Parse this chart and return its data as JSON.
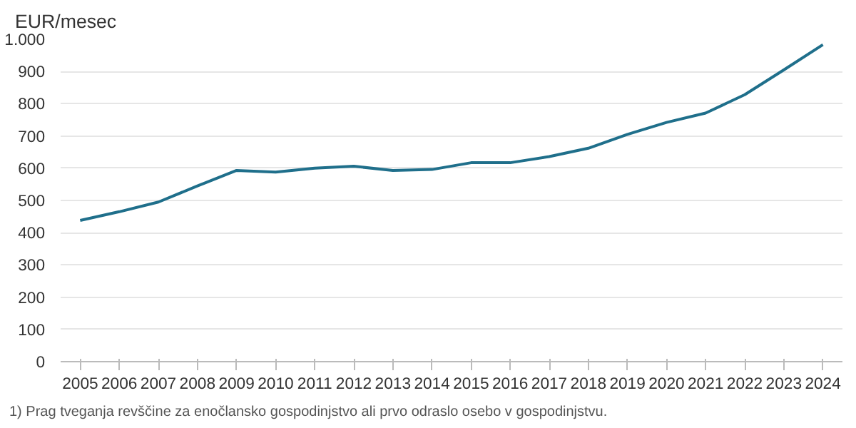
{
  "chart_data": {
    "type": "line",
    "ylabel": "EUR/mesec",
    "categories": [
      "2005",
      "2006",
      "2007",
      "2008",
      "2009",
      "2010",
      "2011",
      "2012",
      "2013",
      "2014",
      "2015",
      "2016",
      "2017",
      "2018",
      "2019",
      "2020",
      "2021",
      "2022",
      "2023",
      "2024"
    ],
    "series": [
      {
        "color": "#1f6f8b",
        "values": [
          438,
          465,
          495,
          545,
          593,
          588,
          600,
          606,
          593,
          596,
          617,
          617,
          636,
          662,
          705,
          742,
          771,
          828,
          905,
          983
        ]
      }
    ],
    "ylim": [
      0,
      1000
    ],
    "yticks": [
      0,
      100,
      200,
      300,
      400,
      500,
      600,
      700,
      800,
      900,
      {
        "value": 1000,
        "label": "1.000"
      }
    ],
    "grid": "y",
    "annotations": [
      "1) Prag tveganja revščine za enočlansko gospodinjstvo ali prvo odraslo osebo v gospodinjstvu."
    ]
  }
}
